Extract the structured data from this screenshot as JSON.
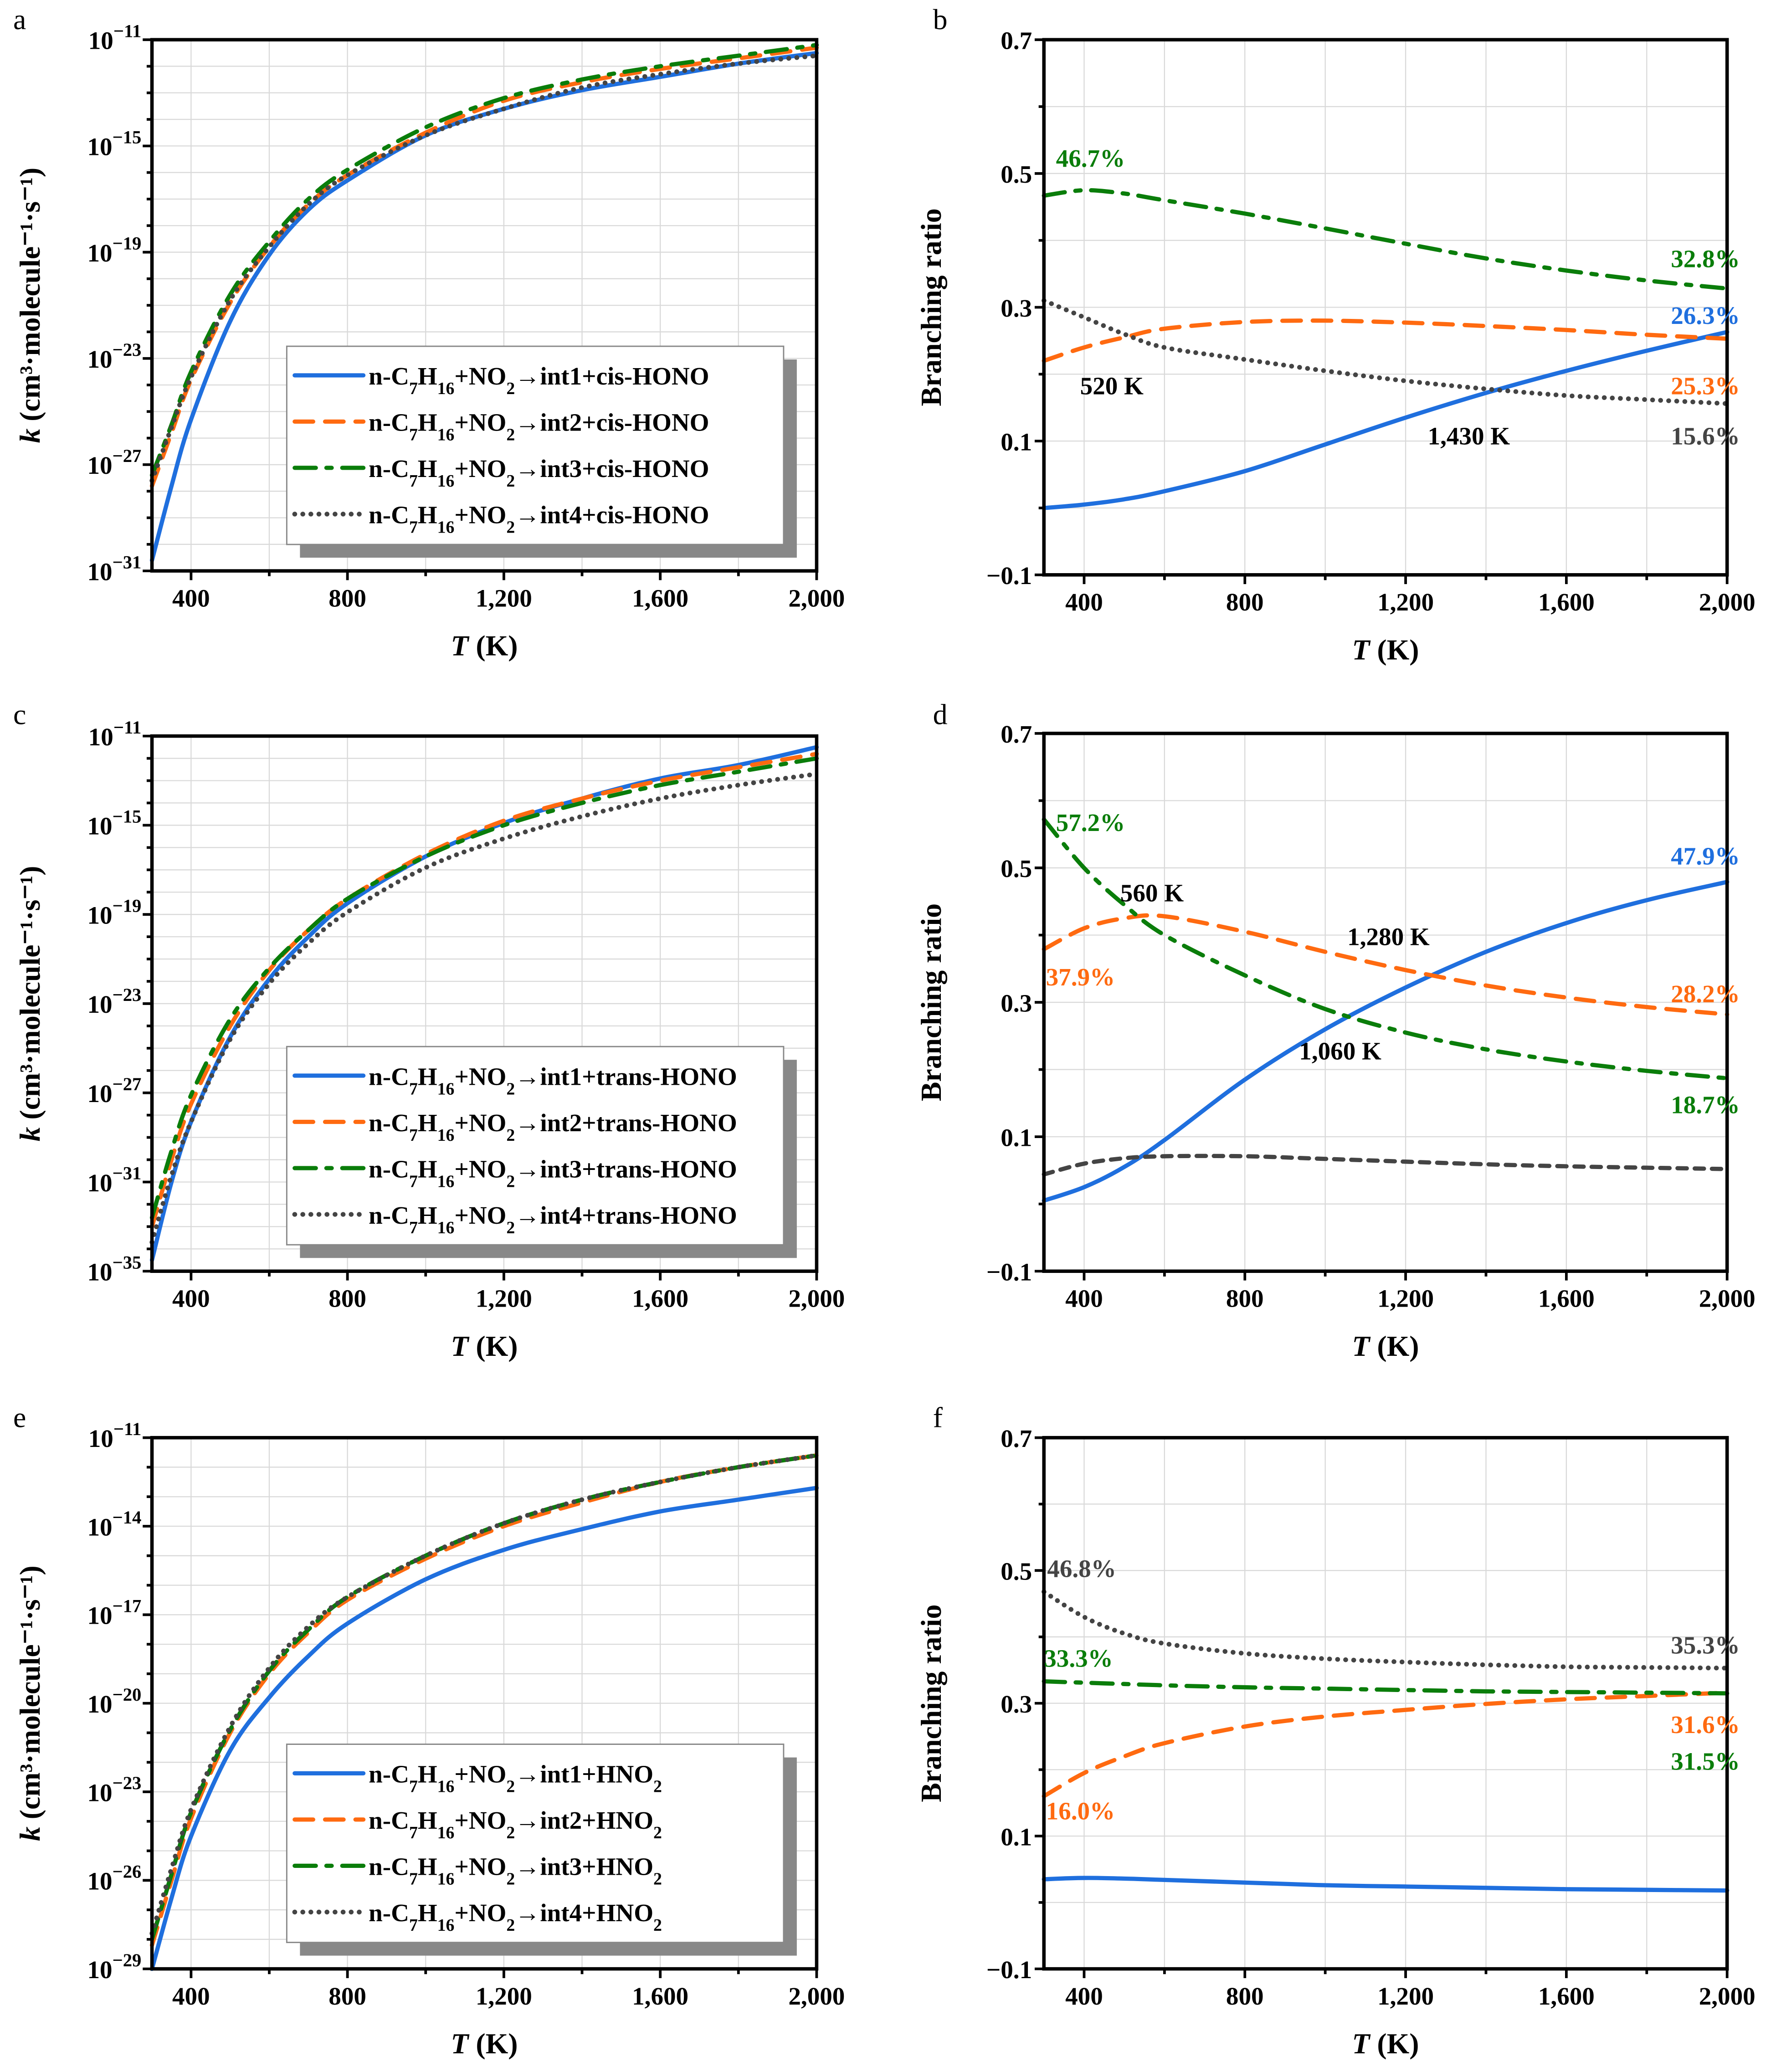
{
  "figure": {
    "colors": {
      "int1": "#1f6fde",
      "int2": "#ff6a10",
      "int3": "#0a7d0a",
      "int4": "#444444"
    }
  },
  "chart_data": [
    {
      "panel": "a",
      "type": "line",
      "yscale": "log",
      "xlabel_italic": "T",
      "xlabel_rest": " (K)",
      "ylabel": "k (cm³·molecule⁻¹·s⁻¹)",
      "xlim": [
        300,
        2000
      ],
      "ylim_exp": [
        -31,
        -11
      ],
      "xticks": [
        400,
        800,
        1200,
        1600,
        2000
      ],
      "xtick_labels": [
        "400",
        "800",
        "1,200",
        "1,600",
        "2,000"
      ],
      "ytick_exps": [
        -11,
        -15,
        -19,
        -23,
        -27,
        -31
      ],
      "legend_position": "lower-right",
      "x": [
        300,
        350,
        400,
        500,
        600,
        700,
        800,
        1000,
        1200,
        1400,
        1600,
        1800,
        2000
      ],
      "series": [
        {
          "name": "n-C7H16+NO2→int1+cis-HONO",
          "key": "int1",
          "style": "solid",
          "legend_parts": [
            "n-C",
            "7",
            "H",
            "16",
            "+NO",
            "2",
            "→int1+cis-HONO"
          ],
          "log10k": [
            -30.6,
            -27.8,
            -25.3,
            -21.6,
            -19.1,
            -17.4,
            -16.3,
            -14.6,
            -13.6,
            -12.9,
            -12.4,
            -11.9,
            -11.5
          ]
        },
        {
          "name": "n-C7H16+NO2→int2+cis-HONO",
          "key": "int2",
          "style": "dashed",
          "legend_parts": [
            "n-C",
            "7",
            "H",
            "16",
            "+NO",
            "2",
            "→int2+cis-HONO"
          ],
          "log10k": [
            -27.8,
            -25.8,
            -23.8,
            -20.9,
            -18.8,
            -17.2,
            -16.1,
            -14.5,
            -13.3,
            -12.6,
            -12.1,
            -11.7,
            -11.3
          ]
        },
        {
          "name": "n-C7H16+NO2→int3+cis-HONO",
          "key": "int3",
          "style": "dashdot",
          "legend_parts": [
            "n-C",
            "7",
            "H",
            "16",
            "+NO",
            "2",
            "→int3+cis-HONO"
          ],
          "log10k": [
            -27.4,
            -25.5,
            -23.5,
            -20.6,
            -18.6,
            -17.0,
            -15.9,
            -14.3,
            -13.2,
            -12.5,
            -12.0,
            -11.6,
            -11.2
          ]
        },
        {
          "name": "n-C7H16+NO2→int4+cis-HONO",
          "key": "int4",
          "style": "dotted",
          "legend_parts": [
            "n-C",
            "7",
            "H",
            "16",
            "+NO",
            "2",
            "→int4+cis-HONO"
          ],
          "log10k": [
            -27.6,
            -25.6,
            -23.7,
            -20.8,
            -18.8,
            -17.2,
            -16.1,
            -14.6,
            -13.6,
            -12.8,
            -12.3,
            -11.9,
            -11.6
          ]
        }
      ]
    },
    {
      "panel": "b",
      "type": "line",
      "xlabel_italic": "T",
      "xlabel_rest": " (K)",
      "ylabel": "Branching ratio",
      "xlim": [
        300,
        2000
      ],
      "ylim": [
        -0.1,
        0.7
      ],
      "xticks": [
        400,
        800,
        1200,
        1600,
        2000
      ],
      "xtick_labels": [
        "400",
        "800",
        "1,200",
        "1,600",
        "2,000"
      ],
      "yticks": [
        -0.1,
        0.1,
        0.3,
        0.5,
        0.7
      ],
      "ytick_labels": [
        "−0.1",
        "0.1",
        "0.3",
        "0.5",
        "0.7"
      ],
      "x": [
        300,
        400,
        500,
        600,
        800,
        1000,
        1200,
        1400,
        1600,
        1800,
        2000
      ],
      "series": [
        {
          "key": "int1",
          "style": "solid",
          "values": [
            0.0,
            0.005,
            0.013,
            0.025,
            0.055,
            0.095,
            0.135,
            0.172,
            0.205,
            0.235,
            0.263
          ]
        },
        {
          "key": "int2",
          "style": "dashed",
          "values": [
            0.22,
            0.24,
            0.255,
            0.268,
            0.278,
            0.28,
            0.277,
            0.272,
            0.266,
            0.259,
            0.253
          ]
        },
        {
          "key": "int3",
          "style": "dashdot",
          "values": [
            0.467,
            0.475,
            0.47,
            0.46,
            0.44,
            0.418,
            0.395,
            0.373,
            0.355,
            0.34,
            0.328
          ]
        },
        {
          "key": "int4",
          "style": "dotted",
          "values": [
            0.31,
            0.285,
            0.26,
            0.24,
            0.222,
            0.205,
            0.19,
            0.178,
            0.168,
            0.162,
            0.156
          ]
        }
      ],
      "annotations": [
        {
          "text": "46.7%",
          "key": "int3",
          "x": 330,
          "y": 0.51
        },
        {
          "text": "32.8%",
          "key": "int3",
          "x": 1860,
          "y": 0.36
        },
        {
          "text": "26.3%",
          "key": "int1",
          "x": 1860,
          "y": 0.275
        },
        {
          "text": "25.3%",
          "key": "int2",
          "x": 1860,
          "y": 0.17
        },
        {
          "text": "15.6%",
          "key": "int4",
          "x": 1860,
          "y": 0.095
        },
        {
          "text": "520 K",
          "key": "black",
          "x": 390,
          "y": 0.17
        },
        {
          "text": "1,430 K",
          "key": "black",
          "x": 1255,
          "y": 0.095
        }
      ]
    },
    {
      "panel": "c",
      "type": "line",
      "yscale": "log",
      "xlabel_italic": "T",
      "xlabel_rest": " (K)",
      "ylabel": "k (cm³·molecule⁻¹·s⁻¹)",
      "xlim": [
        300,
        2000
      ],
      "ylim_exp": [
        -35,
        -11
      ],
      "xticks": [
        400,
        800,
        1200,
        1600,
        2000
      ],
      "xtick_labels": [
        "400",
        "800",
        "1,200",
        "1,600",
        "2,000"
      ],
      "ytick_exps": [
        -11,
        -15,
        -19,
        -23,
        -27,
        -31,
        -35
      ],
      "legend_position": "lower-right",
      "x": [
        300,
        350,
        400,
        500,
        600,
        700,
        800,
        1000,
        1200,
        1400,
        1600,
        1800,
        2000
      ],
      "series": [
        {
          "name": "n-C7H16+NO2→int1+trans-HONO",
          "key": "int1",
          "style": "solid",
          "legend_parts": [
            "n-C",
            "7",
            "H",
            "16",
            "+NO",
            "2",
            "→int1+trans-HONO"
          ],
          "log10k": [
            -34.5,
            -31.0,
            -28.3,
            -24.5,
            -21.9,
            -20.0,
            -18.5,
            -16.4,
            -14.9,
            -13.8,
            -12.9,
            -12.3,
            -11.5
          ]
        },
        {
          "name": "n-C7H16+NO2→int2+trans-HONO",
          "key": "int2",
          "style": "dashed",
          "legend_parts": [
            "n-C",
            "7",
            "H",
            "16",
            "+NO",
            "2",
            "→int2+trans-HONO"
          ],
          "log10k": [
            -33.0,
            -30.0,
            -27.5,
            -24.0,
            -21.5,
            -19.7,
            -18.3,
            -16.3,
            -14.8,
            -13.8,
            -13.0,
            -12.4,
            -11.8
          ]
        },
        {
          "name": "n-C7H16+NO2→int3+trans-HONO",
          "key": "int3",
          "style": "dashdot",
          "legend_parts": [
            "n-C",
            "7",
            "H",
            "16",
            "+NO",
            "2",
            "→int3+trans-HONO"
          ],
          "log10k": [
            -32.6,
            -29.6,
            -27.1,
            -23.7,
            -21.4,
            -19.7,
            -18.3,
            -16.4,
            -15.0,
            -14.0,
            -13.2,
            -12.6,
            -12.0
          ]
        },
        {
          "name": "n-C7H16+NO2→int4+trans-HONO",
          "key": "int4",
          "style": "dotted",
          "legend_parts": [
            "n-C",
            "7",
            "H",
            "16",
            "+NO",
            "2",
            "→int4+trans-HONO"
          ],
          "log10k": [
            -33.7,
            -30.7,
            -28.3,
            -24.6,
            -22.1,
            -20.3,
            -18.9,
            -16.9,
            -15.6,
            -14.6,
            -13.8,
            -13.2,
            -12.7
          ]
        }
      ]
    },
    {
      "panel": "d",
      "type": "line",
      "xlabel_italic": "T",
      "xlabel_rest": " (K)",
      "ylabel": "Branching ratio",
      "xlim": [
        300,
        2000
      ],
      "ylim": [
        -0.1,
        0.7
      ],
      "xticks": [
        400,
        800,
        1200,
        1600,
        2000
      ],
      "xtick_labels": [
        "400",
        "800",
        "1,200",
        "1,600",
        "2,000"
      ],
      "yticks": [
        -0.1,
        0.1,
        0.3,
        0.5,
        0.7
      ],
      "ytick_labels": [
        "−0.1",
        "0.1",
        "0.3",
        "0.5",
        "0.7"
      ],
      "x": [
        300,
        400,
        500,
        600,
        800,
        1000,
        1200,
        1400,
        1600,
        1800,
        2000
      ],
      "series": [
        {
          "key": "int1",
          "style": "solid",
          "values": [
            0.005,
            0.025,
            0.055,
            0.095,
            0.185,
            0.26,
            0.322,
            0.375,
            0.418,
            0.452,
            0.479
          ]
        },
        {
          "key": "int2",
          "style": "dashed",
          "values": [
            0.379,
            0.41,
            0.425,
            0.428,
            0.405,
            0.375,
            0.348,
            0.325,
            0.307,
            0.293,
            0.282
          ]
        },
        {
          "key": "int3",
          "style": "dashdot",
          "values": [
            0.572,
            0.5,
            0.445,
            0.4,
            0.34,
            0.29,
            0.255,
            0.23,
            0.212,
            0.198,
            0.187
          ]
        },
        {
          "key": "int4",
          "style": "dashed-short",
          "values": [
            0.044,
            0.06,
            0.068,
            0.071,
            0.071,
            0.067,
            0.063,
            0.059,
            0.056,
            0.054,
            0.052
          ]
        }
      ],
      "annotations": [
        {
          "text": "57.2%",
          "key": "int3",
          "x": 330,
          "y": 0.555
        },
        {
          "text": "37.9%",
          "key": "int2",
          "x": 305,
          "y": 0.325
        },
        {
          "text": "47.9%",
          "key": "int1",
          "x": 1860,
          "y": 0.505
        },
        {
          "text": "28.2%",
          "key": "int2",
          "x": 1860,
          "y": 0.3
        },
        {
          "text": "18.7%",
          "key": "int3",
          "x": 1860,
          "y": 0.135
        },
        {
          "text": "560 K",
          "key": "black",
          "x": 490,
          "y": 0.45
        },
        {
          "text": "1,280 K",
          "key": "black",
          "x": 1055,
          "y": 0.385
        },
        {
          "text": "1,060 K",
          "key": "black",
          "x": 935,
          "y": 0.215
        }
      ]
    },
    {
      "panel": "e",
      "type": "line",
      "yscale": "log",
      "xlabel_italic": "T",
      "xlabel_rest": " (K)",
      "ylabel": "k (cm³·molecule⁻¹·s⁻¹)",
      "xlim": [
        300,
        2000
      ],
      "ylim_exp": [
        -29,
        -11
      ],
      "xticks": [
        400,
        800,
        1200,
        1600,
        2000
      ],
      "xtick_labels": [
        "400",
        "800",
        "1,200",
        "1,600",
        "2,000"
      ],
      "ytick_exps": [
        -11,
        -14,
        -17,
        -20,
        -23,
        -26,
        -29
      ],
      "legend_position": "lower-right",
      "x": [
        300,
        350,
        400,
        500,
        600,
        700,
        800,
        1000,
        1200,
        1400,
        1600,
        1800,
        2000
      ],
      "series": [
        {
          "name": "n-C7H16+NO2→int1+HNO2",
          "key": "int1",
          "style": "solid",
          "legend_parts": [
            "n-C",
            "7",
            "H",
            "16",
            "+NO",
            "2",
            "→int1+HNO",
            "2",
            ""
          ],
          "log10k": [
            -29.0,
            -26.6,
            -24.5,
            -21.6,
            -19.8,
            -18.4,
            -17.3,
            -15.8,
            -14.8,
            -14.1,
            -13.5,
            -13.1,
            -12.7
          ]
        },
        {
          "name": "n-C7H16+NO2→int2+HNO2",
          "key": "int2",
          "style": "dashed",
          "legend_parts": [
            "n-C",
            "7",
            "H",
            "16",
            "+NO",
            "2",
            "→int2+HNO",
            "2",
            ""
          ],
          "log10k": [
            -28.2,
            -26.0,
            -23.9,
            -21.0,
            -19.0,
            -17.6,
            -16.5,
            -15.1,
            -14.0,
            -13.2,
            -12.5,
            -12.0,
            -11.6
          ]
        },
        {
          "name": "n-C7H16+NO2→int3+HNO2",
          "key": "int3",
          "style": "dashdot",
          "legend_parts": [
            "n-C",
            "7",
            "H",
            "16",
            "+NO",
            "2",
            "→int3+HNO",
            "2",
            ""
          ],
          "log10k": [
            -28.0,
            -25.8,
            -23.7,
            -20.9,
            -18.9,
            -17.5,
            -16.4,
            -15.0,
            -13.9,
            -13.1,
            -12.5,
            -12.0,
            -11.6
          ]
        },
        {
          "name": "n-C7H16+NO2→int4+HNO2",
          "key": "int4",
          "style": "dotted",
          "legend_parts": [
            "n-C",
            "7",
            "H",
            "16",
            "+NO",
            "2",
            "→int4+HNO",
            "2",
            ""
          ],
          "log10k": [
            -27.8,
            -25.6,
            -23.6,
            -20.8,
            -18.8,
            -17.4,
            -16.4,
            -15.0,
            -13.9,
            -13.1,
            -12.5,
            -12.0,
            -11.6
          ]
        }
      ]
    },
    {
      "panel": "f",
      "type": "line",
      "xlabel_italic": "T",
      "xlabel_rest": " (K)",
      "ylabel": "Branching ratio",
      "xlim": [
        300,
        2000
      ],
      "ylim": [
        -0.1,
        0.7
      ],
      "xticks": [
        400,
        800,
        1200,
        1600,
        2000
      ],
      "xtick_labels": [
        "400",
        "800",
        "1,200",
        "1,600",
        "2,000"
      ],
      "yticks": [
        -0.1,
        0.1,
        0.3,
        0.5,
        0.7
      ],
      "ytick_labels": [
        "−0.1",
        "0.1",
        "0.3",
        "0.5",
        "0.7"
      ],
      "x": [
        300,
        400,
        500,
        600,
        800,
        1000,
        1200,
        1400,
        1600,
        1800,
        2000
      ],
      "series": [
        {
          "key": "int1",
          "style": "solid",
          "values": [
            0.035,
            0.037,
            0.036,
            0.034,
            0.03,
            0.026,
            0.024,
            0.022,
            0.02,
            0.019,
            0.018
          ]
        },
        {
          "key": "int2",
          "style": "dashed",
          "values": [
            0.16,
            0.195,
            0.22,
            0.24,
            0.265,
            0.28,
            0.29,
            0.299,
            0.306,
            0.311,
            0.316
          ]
        },
        {
          "key": "int3",
          "style": "dashdot",
          "values": [
            0.333,
            0.331,
            0.329,
            0.327,
            0.324,
            0.322,
            0.32,
            0.318,
            0.317,
            0.316,
            0.315
          ]
        },
        {
          "key": "int4",
          "style": "dotted",
          "values": [
            0.468,
            0.43,
            0.405,
            0.39,
            0.375,
            0.367,
            0.362,
            0.358,
            0.355,
            0.354,
            0.353
          ]
        }
      ],
      "annotations": [
        {
          "text": "46.8%",
          "key": "int4",
          "x": 308,
          "y": 0.49
        },
        {
          "text": "33.3%",
          "key": "int3",
          "x": 300,
          "y": 0.355
        },
        {
          "text": "16.0%",
          "key": "int2",
          "x": 305,
          "y": 0.125
        },
        {
          "text": "35.3%",
          "key": "int4",
          "x": 1860,
          "y": 0.375
        },
        {
          "text": "31.6%",
          "key": "int2",
          "x": 1860,
          "y": 0.255
        },
        {
          "text": "31.5%",
          "key": "int3",
          "x": 1860,
          "y": 0.2
        }
      ]
    }
  ]
}
